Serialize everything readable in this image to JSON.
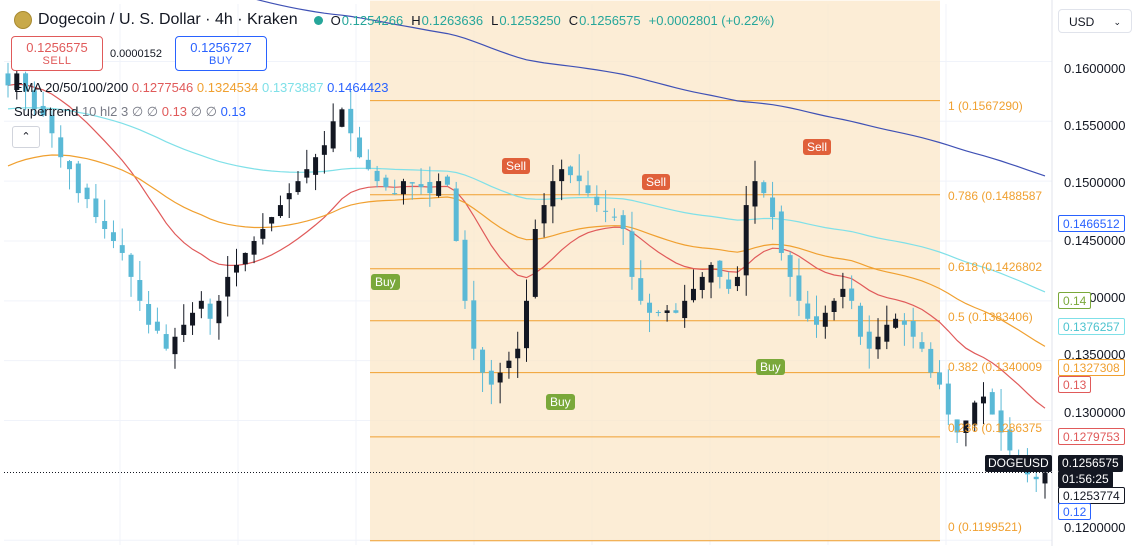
{
  "header": {
    "symbol_title": "Dogecoin / U. S. Dollar · 4h · Kraken",
    "ohlc": [
      {
        "k": "O",
        "v": "0.1254266"
      },
      {
        "k": "H",
        "v": "0.1263636"
      },
      {
        "k": "L",
        "v": "0.1253250"
      },
      {
        "k": "C",
        "v": "0.1256575"
      }
    ],
    "change": "+0.0002801 (+0.22%)"
  },
  "trade": {
    "sell_price": "0.1256575",
    "sell_label": "SELL",
    "spread": "0.0000152",
    "buy_price": "0.1256727",
    "buy_label": "BUY"
  },
  "indicators": {
    "ema_label": "EMA 20/50/100/200",
    "ema_values": [
      "0.1277546",
      "0.1324534",
      "0.1373887",
      "0.1464423"
    ],
    "ema_colors": [
      "#e05a5a",
      "#f0a030",
      "#7fe0e8",
      "#3f51b5"
    ],
    "supertrend_label": "Supertrend",
    "supertrend_params": "10 hl2 3",
    "supertrend_value_1": "0.13",
    "supertrend_value_2": "0.13",
    "collapse_icon": "chevron-up-icon"
  },
  "currency_select": {
    "value": "USD"
  },
  "price_axis": {
    "labels": [
      "0.1600000",
      "0.1550000",
      "0.1500000",
      "0.1450000",
      "0.1400000",
      "0.1350000",
      "0.1300000",
      "0.1200000"
    ]
  },
  "price_tags": {
    "ema200": "0.1466512",
    "st_up": "0.14",
    "ema100": "0.1376257",
    "ema50": "0.1327308",
    "st_down": "0.13",
    "ema20": "0.1279753",
    "last_price": "0.1256575",
    "countdown": "01:56:25",
    "low": "0.1253774",
    "lower": "0.12",
    "symbol": "DOGEUSD"
  },
  "fibonacci": [
    {
      "label": "1 (0.1567290)"
    },
    {
      "label": "0.786 (0.1488587"
    },
    {
      "label": "0.618 (0.1426802"
    },
    {
      "label": "0.5 (0.1383406)"
    },
    {
      "label": "0.382 (0.1340009"
    },
    {
      "label": "0.236 (0.1286375"
    },
    {
      "label": "0 (0.1199521)"
    }
  ],
  "signals": {
    "sell": "Sell",
    "buy": "Buy"
  },
  "colors": {
    "up": "#131722",
    "down": "#5ab9d6",
    "fib": "#f0a030",
    "sell_signal": "#e0603a",
    "buy_signal": "#7aa83a"
  },
  "chart_data": {
    "type": "candlestick",
    "title": "Dogecoin / U. S. Dollar · 4h · Kraken",
    "ylim": [
      0.1196,
      0.1648
    ],
    "y_ticks": [
      0.12,
      0.13,
      0.135,
      0.14,
      0.145,
      0.15,
      0.155,
      0.16
    ],
    "fib_levels": [
      0.156729,
      0.1488587,
      0.1426802,
      0.1383406,
      0.1340009,
      0.1286375,
      0.1199521
    ],
    "closes": [
      0.158,
      0.159,
      0.1575,
      0.156,
      0.1555,
      0.154,
      0.152,
      0.151,
      0.149,
      0.1485,
      0.147,
      0.146,
      0.145,
      0.144,
      0.142,
      0.14,
      0.138,
      0.1375,
      0.136,
      0.137,
      0.138,
      0.139,
      0.14,
      0.1385,
      0.14,
      0.142,
      0.143,
      0.144,
      0.145,
      0.146,
      0.147,
      0.148,
      0.149,
      0.15,
      0.151,
      0.152,
      0.153,
      0.155,
      0.156,
      0.154,
      0.152,
      0.151,
      0.15,
      0.1495,
      0.149,
      0.15,
      0.1498,
      0.1495,
      0.149,
      0.15,
      0.1497,
      0.145,
      0.14,
      0.136,
      0.134,
      0.133,
      0.134,
      0.135,
      0.136,
      0.14,
      0.146,
      0.148,
      0.15,
      0.151,
      0.1505,
      0.15,
      0.149,
      0.148,
      0.1475,
      0.147,
      0.146,
      0.142,
      0.14,
      0.139,
      0.139,
      0.1392,
      0.139,
      0.14,
      0.141,
      0.142,
      0.143,
      0.142,
      0.141,
      0.142,
      0.148,
      0.15,
      0.149,
      0.147,
      0.144,
      0.142,
      0.14,
      0.1385,
      0.138,
      0.139,
      0.14,
      0.141,
      0.14,
      0.137,
      0.136,
      0.137,
      0.138,
      0.1385,
      0.138,
      0.137,
      0.136,
      0.134,
      0.133,
      0.1305,
      0.129,
      0.13,
      0.1315,
      0.132,
      0.1305,
      0.129,
      0.1275,
      0.127,
      0.1255,
      0.1251,
      0.1256575
    ]
  }
}
